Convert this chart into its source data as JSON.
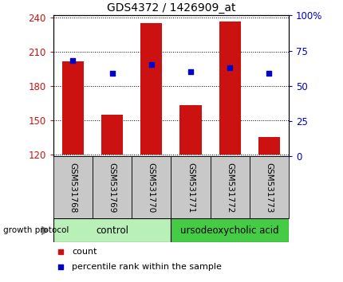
{
  "title": "GDS4372 / 1426909_at",
  "samples": [
    "GSM531768",
    "GSM531769",
    "GSM531770",
    "GSM531771",
    "GSM531772",
    "GSM531773"
  ],
  "bar_values": [
    202,
    155,
    235,
    163,
    237,
    135
  ],
  "bar_base": 120,
  "percentile_values": [
    68,
    59,
    65,
    60,
    63,
    59
  ],
  "ylim_left": [
    118,
    242
  ],
  "yticks_left": [
    120,
    150,
    180,
    210,
    240
  ],
  "ylim_right": [
    0,
    100
  ],
  "yticks_right": [
    0,
    25,
    50,
    75,
    100
  ],
  "bar_color": "#cc1111",
  "marker_color": "#0000cc",
  "bg_color": "#c8c8c8",
  "control_color": "#b8f0b8",
  "treatment_color": "#44cc44",
  "control_label": "control",
  "treatment_label": "ursodeoxycholic acid",
  "group_protocol_label": "growth protocol",
  "legend_count_label": "count",
  "legend_percentile_label": "percentile rank within the sample"
}
